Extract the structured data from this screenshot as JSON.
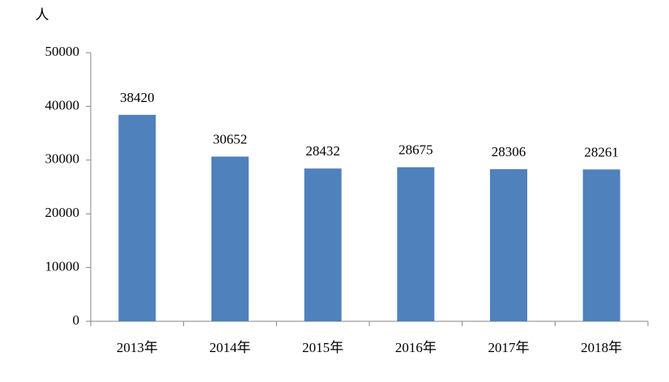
{
  "chart_data": {
    "type": "bar",
    "y_label": "人",
    "categories": [
      "2013年",
      "2014年",
      "2015年",
      "2016年",
      "2017年",
      "2018年"
    ],
    "values": [
      38420,
      30652,
      28432,
      28675,
      28306,
      28261
    ],
    "color": "#4f81bd",
    "ylim": [
      0,
      50000
    ],
    "yticks": [
      0,
      10000,
      20000,
      30000,
      40000,
      50000
    ],
    "grid": false
  }
}
